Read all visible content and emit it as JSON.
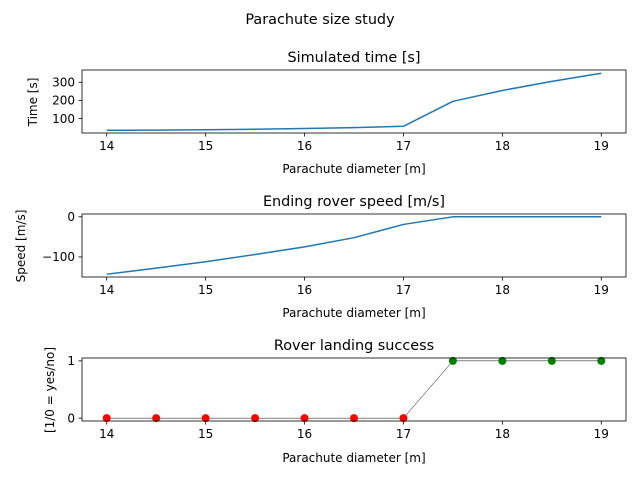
{
  "figure": {
    "suptitle": "Parachute size study"
  },
  "chart_data": [
    {
      "type": "line",
      "title": "Simulated time [s]",
      "xlabel": "Parachute diameter [m]",
      "ylabel": "Time [s]",
      "x": [
        14,
        14.5,
        15,
        15.5,
        16,
        16.5,
        17,
        17.5,
        18,
        18.5,
        19
      ],
      "series": [
        {
          "name": "Simulated time",
          "color": "#1f77b4",
          "values": [
            35,
            36,
            38,
            41,
            45,
            50,
            57,
            195,
            255,
            305,
            350
          ]
        }
      ],
      "xlim": [
        13.75,
        19.25
      ],
      "ylim": [
        20,
        368
      ],
      "xticks": [
        14,
        15,
        16,
        17,
        18,
        19
      ],
      "yticks": [
        100,
        200,
        300
      ],
      "grid": false
    },
    {
      "type": "line",
      "title": "Ending rover speed [m/s]",
      "xlabel": "Parachute diameter [m]",
      "ylabel": "Speed [m/s]",
      "x": [
        14,
        14.5,
        15,
        15.5,
        16,
        16.5,
        17,
        17.5,
        18,
        18.5,
        19
      ],
      "series": [
        {
          "name": "Ending rover speed",
          "color": "#1f77b4",
          "values": [
            -143,
            -128,
            -112,
            -94,
            -75,
            -52,
            -19,
            0,
            0,
            0,
            0
          ]
        }
      ],
      "xlim": [
        13.75,
        19.25
      ],
      "ylim": [
        -150,
        7
      ],
      "xticks": [
        14,
        15,
        16,
        17,
        18,
        19
      ],
      "yticks": [
        -100,
        0
      ],
      "ytick_labels": [
        "−100",
        "0"
      ],
      "grid": false
    },
    {
      "type": "scatter",
      "title": "Rover landing success",
      "xlabel": "Parachute diameter [m]",
      "ylabel": "[1/0 = yes/no]",
      "x": [
        14,
        14.5,
        15,
        15.5,
        16,
        16.5,
        17,
        17.5,
        18,
        18.5,
        19
      ],
      "series": [
        {
          "name": "Landing success",
          "line_color": "#000000",
          "values": [
            0,
            0,
            0,
            0,
            0,
            0,
            0,
            1,
            1,
            1,
            1
          ],
          "point_colors": [
            "#ff0000",
            "#ff0000",
            "#ff0000",
            "#ff0000",
            "#ff0000",
            "#ff0000",
            "#ff0000",
            "#008000",
            "#008000",
            "#008000",
            "#008000"
          ]
        }
      ],
      "xlim": [
        13.75,
        19.25
      ],
      "ylim": [
        -0.05,
        1.05
      ],
      "xticks": [
        14,
        15,
        16,
        17,
        18,
        19
      ],
      "yticks": [
        0,
        1
      ],
      "grid": false
    }
  ]
}
